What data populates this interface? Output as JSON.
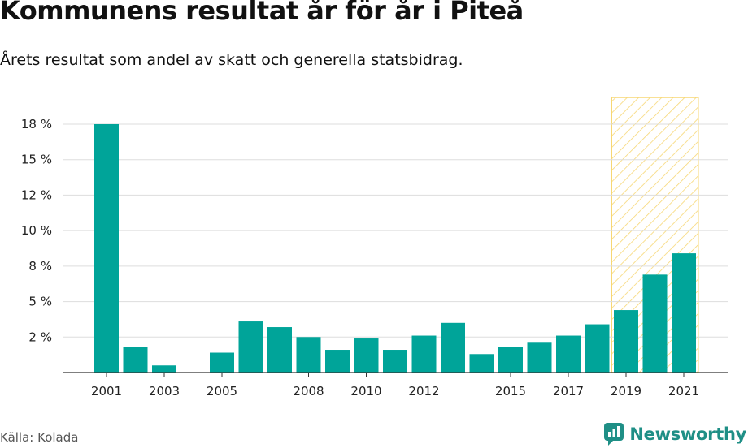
{
  "header": {
    "title": "Kommunens resultat år för år i Piteå",
    "subtitle": "Årets resultat som andel av skatt och generella statsbidrag."
  },
  "footer": {
    "source": "Källa: Kolada",
    "brand": "Newsworthy",
    "brand_icon": "bar-chart-speech-bubble-icon"
  },
  "colors": {
    "bar": "#00a499",
    "grid": "#dddddd",
    "axis": "#333333",
    "highlight_stroke": "#f7d774",
    "brand": "#1f8f86"
  },
  "chart_data": {
    "type": "bar",
    "title": "Kommunens resultat år för år i Piteå",
    "subtitle": "Årets resultat som andel av skatt och generella statsbidrag.",
    "xlabel": "",
    "ylabel": "",
    "categories": [
      "2001",
      "2002",
      "2003",
      "2004",
      "2005",
      "2006",
      "2007",
      "2008",
      "2009",
      "2010",
      "2011",
      "2012",
      "2013",
      "2014",
      "2015",
      "2016",
      "2017",
      "2018",
      "2019",
      "2020",
      "2021"
    ],
    "values": [
      17.5,
      1.8,
      0.5,
      null,
      1.4,
      3.6,
      3.2,
      2.5,
      1.6,
      2.4,
      1.6,
      2.6,
      3.5,
      1.3,
      1.8,
      2.1,
      2.6,
      3.4,
      4.4,
      6.9,
      8.4
    ],
    "x_tick_labels": [
      "2001",
      "2003",
      "2005",
      "2008",
      "2010",
      "2012",
      "2015",
      "2017",
      "2019",
      "2021"
    ],
    "y_ticks": [
      {
        "value": 2.5,
        "label": "2 %"
      },
      {
        "value": 5,
        "label": "5 %"
      },
      {
        "value": 7.5,
        "label": "8 %"
      },
      {
        "value": 10,
        "label": "10 %"
      },
      {
        "value": 12.5,
        "label": "12 %"
      },
      {
        "value": 15,
        "label": "15 %"
      },
      {
        "value": 17.5,
        "label": "18 %"
      }
    ],
    "ylim": [
      0,
      19.5
    ],
    "highlight_range": [
      "2019",
      "2021"
    ],
    "grid": true,
    "legend": "none"
  }
}
